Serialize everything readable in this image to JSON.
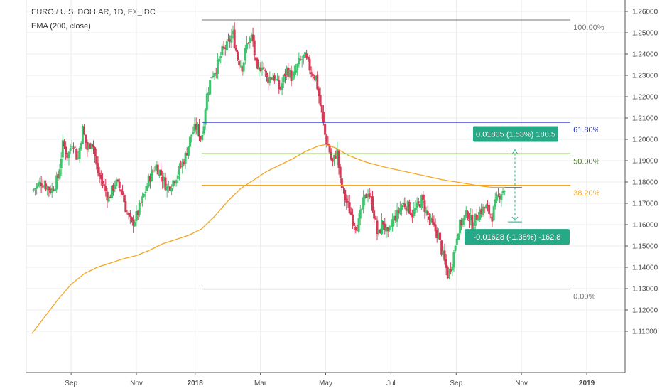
{
  "header": {
    "title": "EURO / U.S. DOLLAR, 1D, FX_IDC",
    "indicator": "EMA (200, close)"
  },
  "colors": {
    "up": "#3ec46d",
    "down": "#d23a56",
    "ema": "#f5a623",
    "fib100": "#777777",
    "fib618": "#1f2bcf",
    "fib50": "#4f7a28",
    "fib382": "#f5a623",
    "fib0": "#777777",
    "callout": "#26a986"
  },
  "chart_data": {
    "type": "candlestick",
    "title": "EURO / U.S. DOLLAR, 1D, FX_IDC",
    "ylim": [
      1.1,
      1.26
    ],
    "y_ticks": [
      "1.26000",
      "1.25000",
      "1.24000",
      "1.23000",
      "1.22000",
      "1.21000",
      "1.20000",
      "1.19000",
      "1.18000",
      "1.17000",
      "1.16000",
      "1.15000",
      "1.14000",
      "1.13000",
      "1.12000",
      "1.11000"
    ],
    "x_ticks": [
      {
        "label": "Sep",
        "month": 1.2
      },
      {
        "label": "Nov",
        "month": 3.2
      },
      {
        "label": "2018",
        "month": 5.0,
        "bold": true
      },
      {
        "label": "Mar",
        "month": 7.0
      },
      {
        "label": "May",
        "month": 9.0
      },
      {
        "label": "Jul",
        "month": 11.0
      },
      {
        "label": "Sep",
        "month": 13.0
      },
      {
        "label": "Nov",
        "month": 15.0
      },
      {
        "label": "2019",
        "month": 17.0,
        "bold": true
      }
    ],
    "xlim_months": [
      0.0,
      18.0
    ],
    "grid": true,
    "price_path": [
      [
        0.0,
        1.176
      ],
      [
        0.3,
        1.18
      ],
      [
        0.6,
        1.176
      ],
      [
        0.8,
        1.182
      ],
      [
        0.95,
        1.198
      ],
      [
        1.1,
        1.192
      ],
      [
        1.25,
        1.2
      ],
      [
        1.4,
        1.19
      ],
      [
        1.55,
        1.205
      ],
      [
        1.7,
        1.195
      ],
      [
        1.85,
        1.2
      ],
      [
        2.0,
        1.185
      ],
      [
        2.15,
        1.18
      ],
      [
        2.35,
        1.172
      ],
      [
        2.55,
        1.18
      ],
      [
        2.75,
        1.176
      ],
      [
        2.9,
        1.166
      ],
      [
        3.05,
        1.16
      ],
      [
        3.2,
        1.164
      ],
      [
        3.4,
        1.172
      ],
      [
        3.6,
        1.182
      ],
      [
        3.8,
        1.188
      ],
      [
        4.0,
        1.182
      ],
      [
        4.15,
        1.177
      ],
      [
        4.3,
        1.18
      ],
      [
        4.5,
        1.185
      ],
      [
        4.7,
        1.192
      ],
      [
        4.9,
        1.203
      ],
      [
        5.05,
        1.206
      ],
      [
        5.2,
        1.2
      ],
      [
        5.35,
        1.22
      ],
      [
        5.5,
        1.23
      ],
      [
        5.7,
        1.235
      ],
      [
        5.85,
        1.242
      ],
      [
        6.0,
        1.244
      ],
      [
        6.15,
        1.25
      ],
      [
        6.3,
        1.238
      ],
      [
        6.45,
        1.234
      ],
      [
        6.6,
        1.246
      ],
      [
        6.75,
        1.248
      ],
      [
        6.9,
        1.23
      ],
      [
        7.05,
        1.236
      ],
      [
        7.2,
        1.228
      ],
      [
        7.4,
        1.23
      ],
      [
        7.6,
        1.223
      ],
      [
        7.8,
        1.233
      ],
      [
        8.0,
        1.228
      ],
      [
        8.15,
        1.235
      ],
      [
        8.35,
        1.239
      ],
      [
        8.55,
        1.232
      ],
      [
        8.7,
        1.229
      ],
      [
        8.85,
        1.215
      ],
      [
        9.0,
        1.2
      ],
      [
        9.1,
        1.196
      ],
      [
        9.2,
        1.188
      ],
      [
        9.35,
        1.195
      ],
      [
        9.45,
        1.18
      ],
      [
        9.6,
        1.172
      ],
      [
        9.75,
        1.166
      ],
      [
        9.9,
        1.16
      ],
      [
        10.0,
        1.16
      ],
      [
        10.15,
        1.17
      ],
      [
        10.3,
        1.176
      ],
      [
        10.45,
        1.168
      ],
      [
        10.6,
        1.154
      ],
      [
        10.75,
        1.162
      ],
      [
        10.9,
        1.154
      ],
      [
        11.05,
        1.162
      ],
      [
        11.2,
        1.165
      ],
      [
        11.35,
        1.17
      ],
      [
        11.5,
        1.169
      ],
      [
        11.65,
        1.165
      ],
      [
        11.8,
        1.168
      ],
      [
        11.95,
        1.172
      ],
      [
        12.1,
        1.165
      ],
      [
        12.25,
        1.16
      ],
      [
        12.45,
        1.155
      ],
      [
        12.6,
        1.145
      ],
      [
        12.75,
        1.136
      ],
      [
        12.9,
        1.144
      ],
      [
        13.05,
        1.158
      ],
      [
        13.2,
        1.162
      ],
      [
        13.35,
        1.165
      ],
      [
        13.5,
        1.16
      ],
      [
        13.7,
        1.166
      ],
      [
        13.9,
        1.168
      ],
      [
        14.1,
        1.164
      ],
      [
        14.25,
        1.172
      ],
      [
        14.4,
        1.176
      ],
      [
        14.5,
        1.177
      ]
    ],
    "ema_series": {
      "name": "EMA (200, close)",
      "points": [
        [
          0.0,
          1.109
        ],
        [
          0.4,
          1.117
        ],
        [
          0.8,
          1.125
        ],
        [
          1.2,
          1.132
        ],
        [
          1.6,
          1.137
        ],
        [
          2.0,
          1.14
        ],
        [
          2.4,
          1.142
        ],
        [
          2.8,
          1.144
        ],
        [
          3.2,
          1.1455
        ],
        [
          3.6,
          1.148
        ],
        [
          4.0,
          1.151
        ],
        [
          4.4,
          1.153
        ],
        [
          4.8,
          1.155
        ],
        [
          5.2,
          1.158
        ],
        [
          5.6,
          1.164
        ],
        [
          6.0,
          1.171
        ],
        [
          6.4,
          1.177
        ],
        [
          6.8,
          1.181
        ],
        [
          7.2,
          1.185
        ],
        [
          7.6,
          1.188
        ],
        [
          8.0,
          1.191
        ],
        [
          8.4,
          1.1945
        ],
        [
          8.8,
          1.197
        ],
        [
          9.0,
          1.1975
        ],
        [
          9.3,
          1.196
        ],
        [
          9.7,
          1.1925
        ],
        [
          10.2,
          1.1895
        ],
        [
          10.8,
          1.187
        ],
        [
          11.4,
          1.185
        ],
        [
          12.0,
          1.183
        ],
        [
          12.6,
          1.181
        ],
        [
          13.0,
          1.18
        ],
        [
          13.4,
          1.179
        ],
        [
          13.8,
          1.178
        ],
        [
          14.1,
          1.1775
        ],
        [
          14.5,
          1.1775
        ]
      ]
    },
    "fib_levels": [
      {
        "label": "100.00%",
        "value": 1.256,
        "color": "#777777",
        "width": 1
      },
      {
        "label": "61.80%",
        "value": 1.208,
        "color": "#1f2bcf",
        "width": 1.2
      },
      {
        "label": "50.00%",
        "value": 1.1932,
        "color": "#4f7a28",
        "width": 1.2
      },
      {
        "label": "38.20%",
        "value": 1.1784,
        "color": "#f5a623",
        "width": 1.5
      },
      {
        "label": "0.00%",
        "value": 1.1298,
        "color": "#777777",
        "width": 1
      }
    ],
    "fib_x_range_months": [
      5.2,
      16.5
    ],
    "measure": {
      "month": 14.8,
      "base": 1.1775,
      "upper": 1.1955,
      "lower": 1.1613,
      "up_label": "0.01805 (1.53%) 180.5",
      "down_label": "-0.01628 (-1.38%) -162.8"
    }
  }
}
